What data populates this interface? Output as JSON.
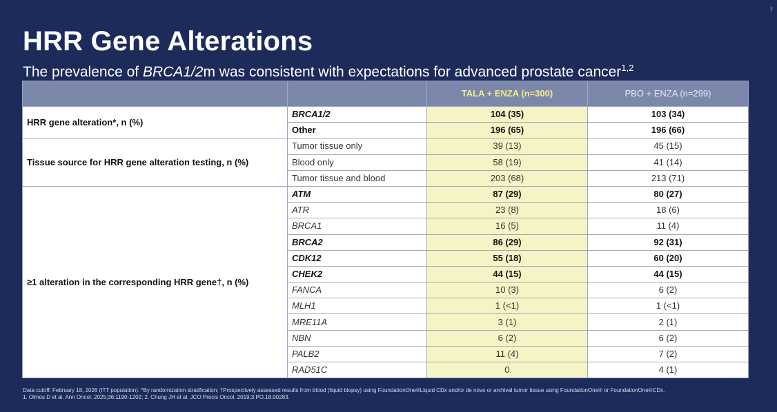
{
  "slide": {
    "page_number": "7",
    "title": "HRR Gene Alterations",
    "subtitle_pre": "The prevalence of ",
    "subtitle_gene": "BRCA1/2",
    "subtitle_post": "m was consistent with expectations for advanced prostate cancer",
    "subtitle_sup": "1,2"
  },
  "table": {
    "headers": [
      "",
      "",
      "TALA + ENZA (n=300)",
      "PBO + ENZA (n=299)"
    ],
    "groups": [
      {
        "label": "HRR gene alteration*, n (%)",
        "rows": [
          {
            "sub": "BRCA1/2",
            "a": "104 (35)",
            "b": "103 (34)",
            "bold": true,
            "italic": true
          },
          {
            "sub": "Other",
            "a": "196 (65)",
            "b": "196 (66)",
            "bold": true,
            "italic": false
          }
        ]
      },
      {
        "label": "Tissue source for HRR gene alteration testing, n (%)",
        "rows": [
          {
            "sub": "Tumor tissue only",
            "a": "39 (13)",
            "b": "45 (15)",
            "bold": false,
            "italic": false
          },
          {
            "sub": "Blood only",
            "a": "58 (19)",
            "b": "41 (14)",
            "bold": false,
            "italic": false
          },
          {
            "sub": "Tumor tissue and blood",
            "a": "203 (68)",
            "b": "213 (71)",
            "bold": false,
            "italic": false
          }
        ]
      },
      {
        "label": "≥1 alteration in the corresponding HRR gene†, n (%)",
        "rows": [
          {
            "sub": "ATM",
            "a": "87 (29)",
            "b": "80 (27)",
            "bold": true,
            "italic": true
          },
          {
            "sub": "ATR",
            "a": "23 (8)",
            "b": "18 (6)",
            "bold": false,
            "italic": true
          },
          {
            "sub": "BRCA1",
            "a": "16 (5)",
            "b": "11 (4)",
            "bold": false,
            "italic": true
          },
          {
            "sub": "BRCA2",
            "a": "86 (29)",
            "b": "92 (31)",
            "bold": true,
            "italic": true
          },
          {
            "sub": "CDK12",
            "a": "55 (18)",
            "b": "60 (20)",
            "bold": true,
            "italic": true
          },
          {
            "sub": "CHEK2",
            "a": "44 (15)",
            "b": "44 (15)",
            "bold": true,
            "italic": true
          },
          {
            "sub": "FANCA",
            "a": "10 (3)",
            "b": "6 (2)",
            "bold": false,
            "italic": true
          },
          {
            "sub": "MLH1",
            "a": "1 (<1)",
            "b": "1 (<1)",
            "bold": false,
            "italic": true
          },
          {
            "sub": "MRE11A",
            "a": "3 (1)",
            "b": "2 (1)",
            "bold": false,
            "italic": true
          },
          {
            "sub": "NBN",
            "a": "6 (2)",
            "b": "6 (2)",
            "bold": false,
            "italic": true
          },
          {
            "sub": "PALB2",
            "a": "11 (4)",
            "b": "7 (2)",
            "bold": false,
            "italic": true
          },
          {
            "sub": "RAD51C",
            "a": "0",
            "b": "4 (1)",
            "bold": false,
            "italic": true
          }
        ]
      }
    ]
  },
  "footnote": {
    "line1": "Data cutoff: February 18, 2026 (ITT population). *By randomization stratification; †Prospectively assessed results from blood (liquid biopsy) using FoundationOne®Liquid CDx and/or de novo or archival tumor tissue using FoundationOne® or FoundationOne®CDx.",
    "line2": "1. Olmos D et al. Ann Oncol. 2025;36:1190-1202; 2. Chung JH et al. JCO Precis Oncol. 2019;3:PO.18.00283."
  },
  "colors": {
    "background": "#1c2b5a",
    "header_fill": "#7b88ab",
    "tala_column_fill": "#f6f3c4",
    "tala_header_text": "#f3ef85"
  }
}
